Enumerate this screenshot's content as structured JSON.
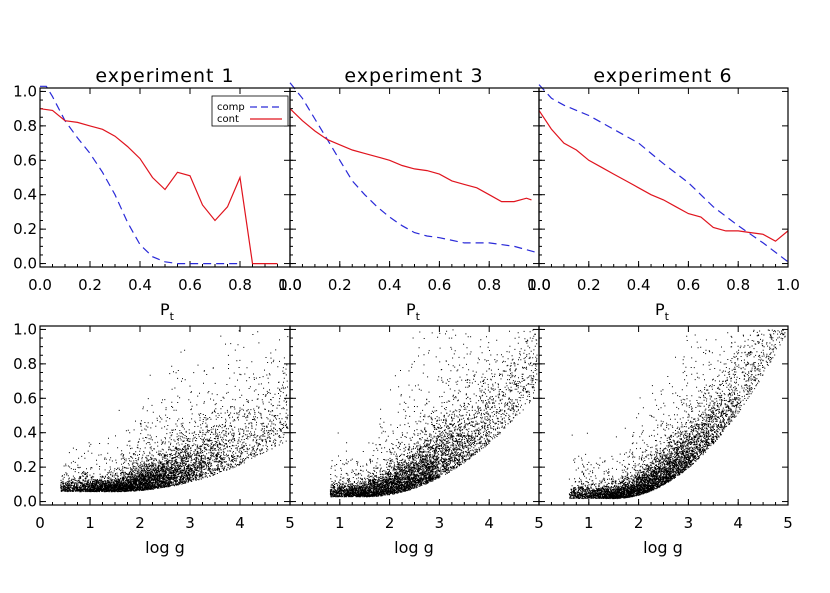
{
  "figure": {
    "top_xlabel_main": "P",
    "top_xlabel_sub": "t",
    "bottom_xlabel": "log g"
  },
  "colors": {
    "comp": "#2a2ad8",
    "cont": "#e0141e",
    "points": "#000000"
  },
  "chart_data": [
    {
      "type": "line",
      "title": "experiment 1",
      "xlim": [
        0,
        1
      ],
      "ylim": [
        -0.02,
        1.02
      ],
      "xticks": [
        "0.0",
        "0.2",
        "0.4",
        "0.6",
        "0.8",
        "1.0"
      ],
      "yticks": [
        "0.0",
        "0.2",
        "0.4",
        "0.6",
        "0.8",
        "1.0"
      ],
      "legend": {
        "placement": "top-right",
        "entries": [
          "comp",
          "cont"
        ]
      },
      "series": [
        {
          "name": "comp",
          "style": "dashed",
          "x": [
            0.0,
            0.025,
            0.05,
            0.1,
            0.15,
            0.2,
            0.25,
            0.3,
            0.35,
            0.4,
            0.45,
            0.5,
            0.55,
            0.6,
            0.7,
            0.8
          ],
          "y": [
            1.03,
            1.03,
            0.97,
            0.83,
            0.73,
            0.64,
            0.53,
            0.4,
            0.24,
            0.11,
            0.04,
            0.01,
            0.0,
            0.0,
            0.0,
            0.0
          ]
        },
        {
          "name": "cont",
          "style": "solid",
          "x": [
            0.0,
            0.05,
            0.1,
            0.15,
            0.2,
            0.25,
            0.3,
            0.35,
            0.4,
            0.45,
            0.5,
            0.55,
            0.6,
            0.65,
            0.7,
            0.75,
            0.8,
            0.85,
            0.9,
            0.95
          ],
          "y": [
            0.9,
            0.89,
            0.83,
            0.82,
            0.8,
            0.78,
            0.74,
            0.68,
            0.61,
            0.5,
            0.43,
            0.53,
            0.51,
            0.34,
            0.25,
            0.33,
            0.5,
            0.0,
            0.0,
            0.0
          ]
        }
      ]
    },
    {
      "type": "line",
      "title": "experiment 3",
      "xlim": [
        0,
        1
      ],
      "ylim": [
        -0.02,
        1.02
      ],
      "xticks": [
        "0.0",
        "0.2",
        "0.4",
        "0.6",
        "0.8",
        "1.0"
      ],
      "yticks": [],
      "series": [
        {
          "name": "comp",
          "style": "dashed",
          "x": [
            0.0,
            0.05,
            0.1,
            0.15,
            0.2,
            0.25,
            0.3,
            0.35,
            0.4,
            0.45,
            0.5,
            0.55,
            0.6,
            0.7,
            0.8,
            0.9,
            1.0
          ],
          "y": [
            1.05,
            0.96,
            0.84,
            0.72,
            0.6,
            0.48,
            0.4,
            0.33,
            0.27,
            0.22,
            0.18,
            0.16,
            0.15,
            0.12,
            0.12,
            0.1,
            0.06
          ]
        },
        {
          "name": "cont",
          "style": "solid",
          "x": [
            0.0,
            0.05,
            0.1,
            0.15,
            0.2,
            0.25,
            0.3,
            0.35,
            0.4,
            0.45,
            0.5,
            0.55,
            0.6,
            0.65,
            0.7,
            0.75,
            0.8,
            0.85,
            0.9,
            0.95,
            0.97
          ],
          "y": [
            0.9,
            0.83,
            0.77,
            0.72,
            0.69,
            0.66,
            0.64,
            0.62,
            0.6,
            0.57,
            0.55,
            0.54,
            0.52,
            0.48,
            0.46,
            0.44,
            0.4,
            0.36,
            0.36,
            0.38,
            0.37
          ]
        }
      ]
    },
    {
      "type": "line",
      "title": "experiment 6",
      "xlim": [
        0,
        1
      ],
      "ylim": [
        -0.02,
        1.02
      ],
      "xticks": [
        "0.0",
        "0.2",
        "0.4",
        "0.6",
        "0.8",
        "1.0"
      ],
      "yticks": [],
      "series": [
        {
          "name": "comp",
          "style": "dashed",
          "x": [
            0.0,
            0.05,
            0.1,
            0.2,
            0.3,
            0.4,
            0.5,
            0.6,
            0.7,
            0.8,
            0.9,
            1.0
          ],
          "y": [
            1.04,
            0.96,
            0.92,
            0.86,
            0.78,
            0.7,
            0.58,
            0.47,
            0.33,
            0.22,
            0.12,
            0.01
          ]
        },
        {
          "name": "cont",
          "style": "solid",
          "x": [
            0.0,
            0.05,
            0.1,
            0.15,
            0.2,
            0.25,
            0.3,
            0.35,
            0.4,
            0.45,
            0.5,
            0.55,
            0.6,
            0.65,
            0.7,
            0.75,
            0.8,
            0.85,
            0.9,
            0.95,
            1.0
          ],
          "y": [
            0.89,
            0.78,
            0.7,
            0.66,
            0.6,
            0.56,
            0.52,
            0.48,
            0.44,
            0.4,
            0.37,
            0.33,
            0.29,
            0.27,
            0.21,
            0.19,
            0.19,
            0.18,
            0.17,
            0.13,
            0.19
          ]
        }
      ]
    },
    {
      "type": "scatter",
      "xlim": [
        0,
        5
      ],
      "ylim": [
        -0.02,
        1.02
      ],
      "xticks": [
        "0",
        "1",
        "2",
        "3",
        "4",
        "5"
      ],
      "yticks": [
        "0.0",
        "0.2",
        "0.4",
        "0.6",
        "0.8",
        "1.0"
      ],
      "cloud": {
        "n": 6000,
        "x_range": [
          0.4,
          4.95
        ],
        "x_center": 2.1,
        "y_base": 0.06,
        "y_growth": 0.05,
        "y_spread": 0.07
      }
    },
    {
      "type": "scatter",
      "xlim": [
        0,
        5
      ],
      "ylim": [
        -0.02,
        1.02
      ],
      "xticks": [
        "1",
        "2",
        "3",
        "4",
        "5"
      ],
      "yticks": [],
      "cloud": {
        "n": 6000,
        "x_range": [
          0.8,
          4.95
        ],
        "x_center": 2.3,
        "y_base": 0.03,
        "y_growth": 0.1,
        "y_spread": 0.08
      }
    },
    {
      "type": "scatter",
      "xlim": [
        0,
        5
      ],
      "ylim": [
        -0.02,
        1.02
      ],
      "xticks": [
        "1",
        "2",
        "3",
        "4",
        "5"
      ],
      "yticks": [],
      "cloud": {
        "n": 6000,
        "x_range": [
          0.6,
          4.95
        ],
        "x_center": 2.3,
        "y_base": 0.02,
        "y_growth": 0.16,
        "y_spread": 0.07
      }
    }
  ]
}
